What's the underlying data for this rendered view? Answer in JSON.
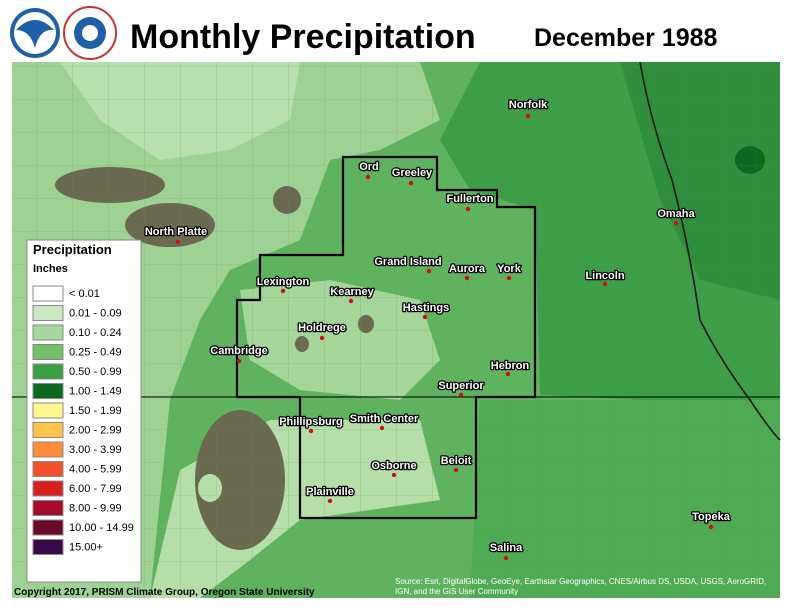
{
  "header": {
    "title": "Monthly Precipitation",
    "date": "December 1988"
  },
  "legend": {
    "title": "Precipitation",
    "units": "Inches",
    "items": [
      {
        "label": "< 0.01",
        "color": "#ffffff"
      },
      {
        "label": "0.01 - 0.09",
        "color": "#cde8c4"
      },
      {
        "label": "0.10 - 0.24",
        "color": "#a6d79c"
      },
      {
        "label": "0.25 - 0.49",
        "color": "#72bf6a"
      },
      {
        "label": "0.50 - 0.99",
        "color": "#3c9f44"
      },
      {
        "label": "1.00 - 1.49",
        "color": "#0b6a1f"
      },
      {
        "label": "1.50 - 1.99",
        "color": "#fff78f"
      },
      {
        "label": "2.00 - 2.99",
        "color": "#ffc24a"
      },
      {
        "label": "3.00 - 3.99",
        "color": "#ff8c3a"
      },
      {
        "label": "4.00 - 5.99",
        "color": "#f0502a"
      },
      {
        "label": "6.00 - 7.99",
        "color": "#d4201e"
      },
      {
        "label": "8.00 - 9.99",
        "color": "#a80a2a"
      },
      {
        "label": "10.00 - 14.99",
        "color": "#6a0a28"
      },
      {
        "label": "15.00+",
        "color": "#3a0a4a"
      }
    ]
  },
  "cities": [
    "Norfolk",
    "Ord",
    "Greeley",
    "Fullerton",
    "North Platte",
    "Omaha",
    "Grand Island",
    "Aurora",
    "York",
    "Lexington",
    "Lincoln",
    "Kearney",
    "Hastings",
    "Holdrege",
    "Cambridge",
    "Hebron",
    "Superior",
    "Phillipsburg",
    "Smith Center",
    "Beloit",
    "Osborne",
    "Plainville",
    "Topeka",
    "Salina"
  ],
  "footer": {
    "copyright": "Copyright 2017, PRISM Climate Group, Oregon State University",
    "source": [
      "Source: Esri, DigitalGlobe, GeoEye, Earthstar Geographics, CNES/Airbus DS, USDA, USGS, AeroGRID,",
      "IGN, and the GIS User Community"
    ]
  }
}
